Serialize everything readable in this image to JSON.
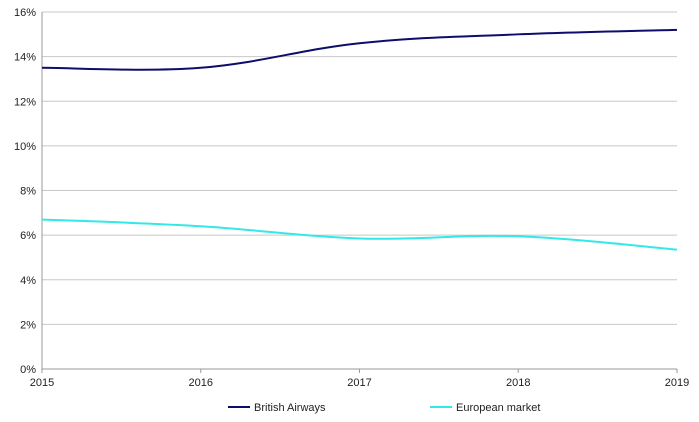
{
  "chart_data": {
    "type": "line",
    "x": [
      "2015",
      "2016",
      "2017",
      "2018",
      "2019"
    ],
    "yticks": [
      "0%",
      "2%",
      "4%",
      "6%",
      "8%",
      "10%",
      "12%",
      "14%",
      "16%"
    ],
    "ylim": [
      0,
      16
    ],
    "grid": true,
    "legend_position": "bottom",
    "series": [
      {
        "name": "British Airways",
        "color": "#0d0d6b",
        "values": [
          13.5,
          13.5,
          14.6,
          15.0,
          15.2
        ]
      },
      {
        "name": "European market",
        "color": "#33e8e8",
        "values": [
          6.7,
          6.4,
          5.85,
          5.95,
          5.35
        ]
      }
    ]
  }
}
